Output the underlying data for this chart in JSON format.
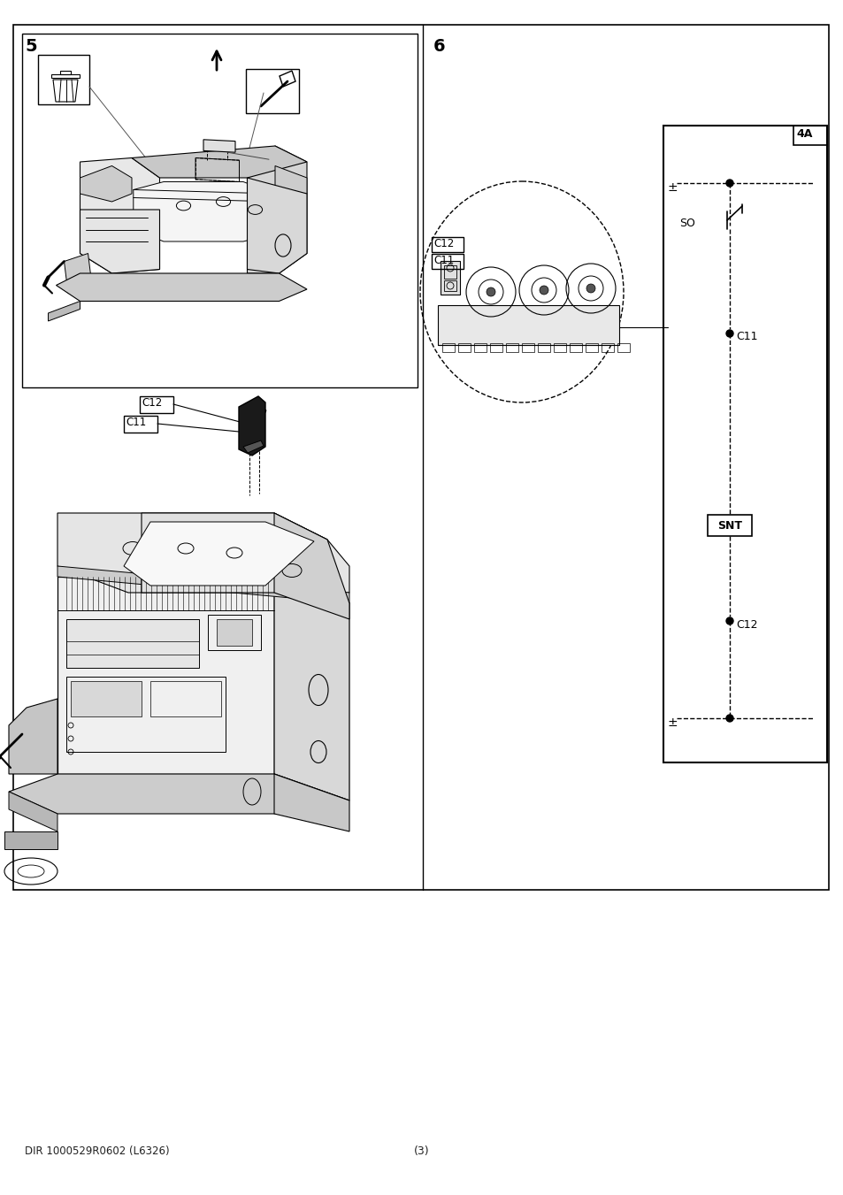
{
  "page_bg": "#ffffff",
  "border_color": "#000000",
  "text_color": "#000000",
  "section5_label": "5",
  "section6_label": "6",
  "footer_left": "DIR 1000529R0602 (L6326)",
  "footer_center": "(3)",
  "diagram_label_4A": "4A",
  "diagram_label_SNT": "SNT",
  "diagram_label_SO": "SO",
  "diagram_label_C11": "C11",
  "diagram_label_C12": "C12",
  "diagram_label_plus": "±",
  "diagram_label_minus": "±",
  "label_C12_upper": "C12",
  "label_C11_upper": "C11"
}
